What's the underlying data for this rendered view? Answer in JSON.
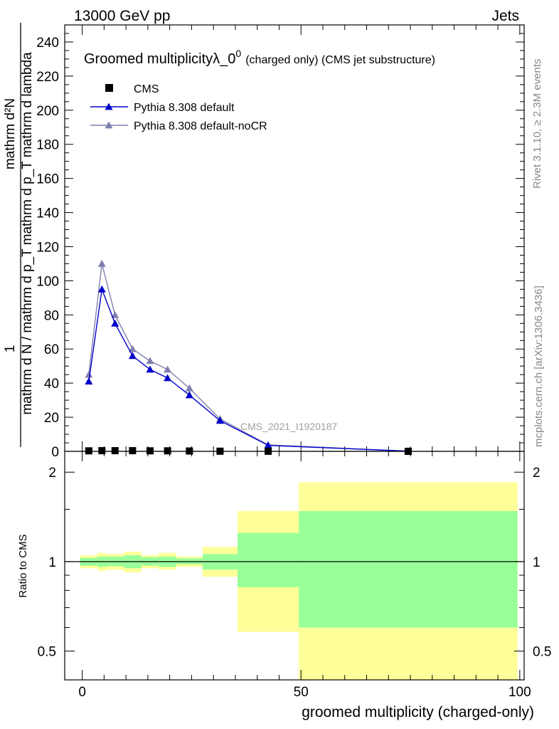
{
  "header": {
    "left": "13000 GeV pp",
    "right": "Jets"
  },
  "side_labels": {
    "rivet": "Rivet 3.1.10, ≥ 2.3M events",
    "mcplots": "mcplots.cern.ch [arXiv:1306.3436]"
  },
  "watermark": "CMS_2021_I1920187",
  "title": {
    "main": "Groomed multiplicityλ_0",
    "sup": "0",
    "note": "(charged only) (CMS jet substructure)"
  },
  "ylabel": {
    "numerator": "mathrm d²N",
    "denominator": "mathrm d N / mathrm d p_T mathrm d p_T mathrm d lambda",
    "prefix": "1"
  },
  "colors": {
    "cms": "#000000",
    "pythia_default": "#0000cc",
    "pythia_nocr": "#8080b0",
    "band_inner": "#99ff99",
    "band_outer": "#ffff99"
  },
  "chart_data": [
    {
      "type": "line",
      "title": "Groomed multiplicityλ_0^0 (charged only) (CMS jet substructure)",
      "xlabel": "groomed multiplicity (charged-only)",
      "ylabel": "1 / (mathrm d N / mathrm d p_T) · mathrm d²N / (mathrm d p_T mathrm d lambda)",
      "xlim": [
        -4,
        101
      ],
      "ylim": [
        0,
        250
      ],
      "grid": false,
      "legend_position": "top-left",
      "y_ticks": [
        "0",
        "20",
        "40",
        "60",
        "80",
        "100",
        "120",
        "140",
        "160",
        "180",
        "200",
        "220",
        "240"
      ],
      "series": [
        {
          "name": "CMS",
          "marker": "square",
          "x": [
            1.5,
            4.5,
            7.5,
            11.5,
            15.5,
            19.5,
            24.5,
            31.5,
            42.5,
            74.5
          ],
          "values": [
            0.3,
            0.4,
            0.4,
            0.4,
            0.3,
            0.3,
            0.2,
            0.1,
            0.05,
            0.01
          ]
        },
        {
          "name": "Pythia 8.308 default",
          "marker": "triangle",
          "x": [
            1.5,
            4.5,
            7.5,
            11.5,
            15.5,
            19.5,
            24.5,
            31.5,
            42.5,
            74.5
          ],
          "values": [
            41,
            95,
            75,
            56,
            48,
            43,
            33,
            18,
            3.5,
            0.1
          ]
        },
        {
          "name": "Pythia 8.308 default-noCR",
          "marker": "triangle",
          "x": [
            1.5,
            4.5,
            7.5,
            11.5,
            15.5,
            19.5,
            24.5,
            31.5,
            42.5,
            74.5
          ],
          "values": [
            45,
            110,
            80,
            60,
            53,
            48,
            37,
            19,
            3.8,
            0.1
          ]
        }
      ]
    },
    {
      "type": "area",
      "ylabel": "Ratio to CMS",
      "xlabel": "groomed multiplicity (charged-only)",
      "scale": "log",
      "xlim": [
        -4,
        101
      ],
      "ylim": [
        0.4,
        2.35
      ],
      "x_ticks": [
        "0",
        "50",
        "100"
      ],
      "y_ticks": [
        "0.5",
        "1",
        "2"
      ],
      "reference_line": 1,
      "bins": [
        {
          "x0": -0.5,
          "x1": 3.5,
          "inner": [
            0.97,
            1.03
          ],
          "outer": [
            0.95,
            1.05
          ]
        },
        {
          "x0": 3.5,
          "x1": 5.5,
          "inner": [
            0.96,
            1.04
          ],
          "outer": [
            0.93,
            1.07
          ]
        },
        {
          "x0": 5.5,
          "x1": 9.5,
          "inner": [
            0.965,
            1.04
          ],
          "outer": [
            0.94,
            1.06
          ]
        },
        {
          "x0": 9.5,
          "x1": 13.5,
          "inner": [
            0.95,
            1.05
          ],
          "outer": [
            0.92,
            1.08
          ]
        },
        {
          "x0": 13.5,
          "x1": 17.5,
          "inner": [
            0.97,
            1.035
          ],
          "outer": [
            0.95,
            1.05
          ]
        },
        {
          "x0": 17.5,
          "x1": 21.5,
          "inner": [
            0.96,
            1.04
          ],
          "outer": [
            0.94,
            1.07
          ]
        },
        {
          "x0": 21.5,
          "x1": 27.5,
          "inner": [
            0.98,
            1.025
          ],
          "outer": [
            0.96,
            1.04
          ]
        },
        {
          "x0": 27.5,
          "x1": 35.5,
          "inner": [
            0.94,
            1.06
          ],
          "outer": [
            0.89,
            1.12
          ]
        },
        {
          "x0": 35.5,
          "x1": 49.5,
          "inner": [
            0.82,
            1.25
          ],
          "outer": [
            0.58,
            1.48
          ]
        },
        {
          "x0": 49.5,
          "x1": 99.5,
          "inner": [
            0.6,
            1.48
          ],
          "outer": [
            0.4,
            1.85
          ]
        }
      ]
    }
  ]
}
